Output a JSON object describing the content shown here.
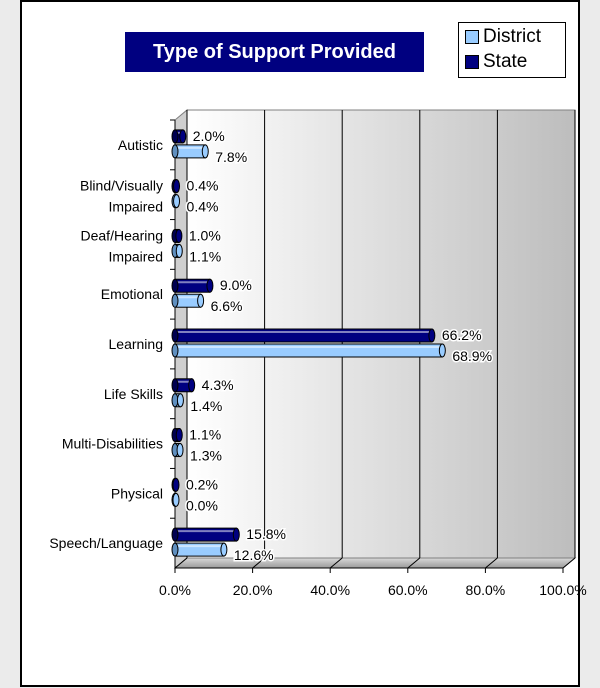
{
  "chart_data": {
    "type": "bar",
    "orientation": "horizontal",
    "title": "Type of Support Provided",
    "categories": [
      "Autistic",
      "Blind/Visually Impaired",
      "Deaf/Hearing Impaired",
      "Emotional",
      "Learning",
      "Life Skills",
      "Multi-Disabilities",
      "Physical",
      "Speech/Language"
    ],
    "series": [
      {
        "name": "State",
        "color": "#000080",
        "values": [
          2.0,
          0.4,
          1.0,
          9.0,
          66.2,
          4.3,
          1.1,
          0.2,
          15.8
        ],
        "labels": [
          "2.0%",
          "0.4%",
          "1.0%",
          "9.0%",
          "66.2%",
          "4.3%",
          "1.1%",
          "0.2%",
          "15.8%"
        ]
      },
      {
        "name": "District",
        "color": "#99ccff",
        "values": [
          7.8,
          0.4,
          1.1,
          6.6,
          68.9,
          1.4,
          1.3,
          0.0,
          12.6
        ],
        "labels": [
          "7.8%",
          "0.4%",
          "1.1%",
          "6.6%",
          "68.9%",
          "1.4%",
          "1.3%",
          "0.0%",
          "12.6%"
        ]
      }
    ],
    "xlim": [
      0,
      100
    ],
    "xticks": [
      "0.0%",
      "20.0%",
      "40.0%",
      "60.0%",
      "80.0%",
      "100.0%"
    ],
    "xlabel": "",
    "ylabel": "",
    "grid": true,
    "legend_position": "top-right"
  }
}
